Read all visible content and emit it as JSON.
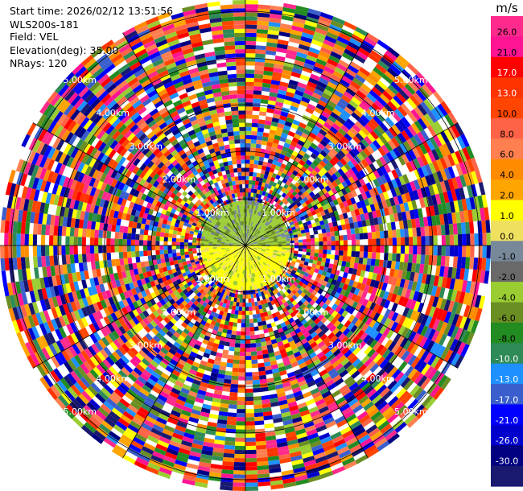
{
  "info": {
    "start_time": "Start time: 2026/02/12 13:51:56",
    "instrument": "WLS200s-181",
    "field": "Field: VEL",
    "elevation": "Elevation(deg): 35.00",
    "nrays": "NRays: 120"
  },
  "chart_data": {
    "type": "heatmap",
    "subtype": "polar-ppi",
    "title": "",
    "grid": true,
    "range_rings": {
      "labels": [
        "1.00km",
        "2.00km",
        "3.00km",
        "4.00km",
        "5.00km"
      ],
      "label_directions": [
        "north-west",
        "north-east",
        "south-west",
        "south-east"
      ]
    },
    "colorbar": {
      "unit": "m/s",
      "placement": "right",
      "ticks": [
        "26.0",
        "21.0",
        "17.0",
        "13.0",
        "10.0",
        "8.0",
        "6.0",
        "4.0",
        "2.0",
        "1.0",
        "0.0",
        "-1.0",
        "-2.0",
        "-4.0",
        "-6.0",
        "-8.0",
        "-10.0",
        "-13.0",
        "-17.0",
        "-21.0",
        "-26.0",
        "-30.0"
      ],
      "colors": [
        "#FF2A8C",
        "#FF1493",
        "#FF0000",
        "#FF3300",
        "#FF4500",
        "#FF6347",
        "#FF7F50",
        "#FF8C00",
        "#FFA500",
        "#FFFF00",
        "#F0E060",
        "#778899",
        "#696969",
        "#9ACD32",
        "#6B8E23",
        "#228B22",
        "#2E8B57",
        "#1E90FF",
        "#3A5FCD",
        "#0000FF",
        "#0000CD",
        "#000080",
        "#191970"
      ]
    }
  }
}
